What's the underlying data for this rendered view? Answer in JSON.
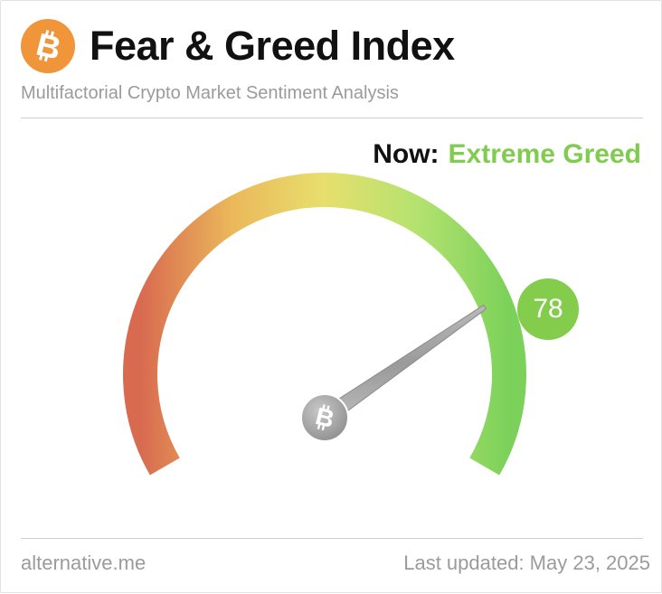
{
  "header": {
    "title": "Fear & Greed Index",
    "subtitle": "Multifactorial Crypto Market Sentiment Analysis",
    "logo_icon": "bitcoin-icon",
    "logo_color": "#f0953a"
  },
  "status": {
    "label": "Now:",
    "classification": "Extreme Greed",
    "classification_color": "#7fcc4e"
  },
  "gauge": {
    "value": 78,
    "min": 0,
    "max": 100,
    "badge_color": "#84cc4c",
    "needle_icon": "bitcoin-icon",
    "gradient_colors": [
      "#d86a50",
      "#ebb85a",
      "#e7df6d",
      "#b4e26f",
      "#7bd15a"
    ]
  },
  "footer": {
    "source": "alternative.me",
    "updated": "Last updated: May 23, 2025"
  }
}
